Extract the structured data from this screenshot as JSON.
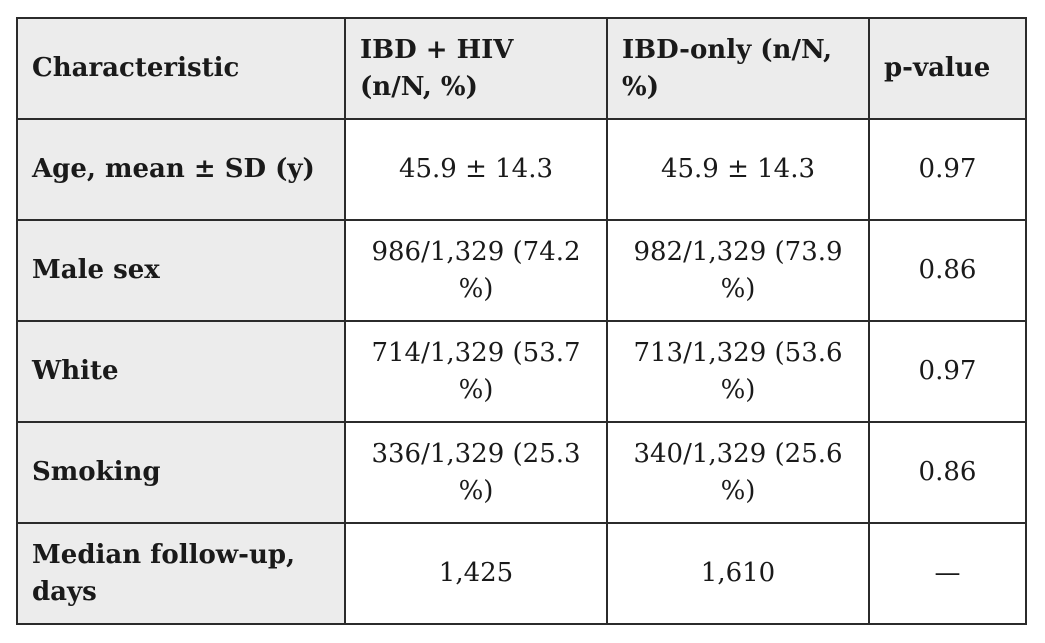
{
  "table": {
    "headers": [
      "Characteristic",
      "IBD + HIV (n/N, %)",
      "IBD-only (n/N, %)",
      "p-value"
    ],
    "rows": [
      {
        "label": "Age, mean ± SD (y)",
        "hiv": "45.9 ± 14.3",
        "only": "45.9 ± 14.3",
        "p": "0.97"
      },
      {
        "label": "Male sex",
        "hiv": "986/1,329 (74.2 %)",
        "only": "982/1,329 (73.9 %)",
        "p": "0.86"
      },
      {
        "label": "White",
        "hiv": "714/1,329 (53.7 %)",
        "only": "713/1,329 (53.6 %)",
        "p": "0.97"
      },
      {
        "label": "Smoking",
        "hiv": "336/1,329 (25.3 %)",
        "only": "340/1,329 (25.6 %)",
        "p": "0.86"
      },
      {
        "label": "Median follow-up, days",
        "hiv": "1,425",
        "only": "1,610",
        "p": "—"
      }
    ]
  }
}
